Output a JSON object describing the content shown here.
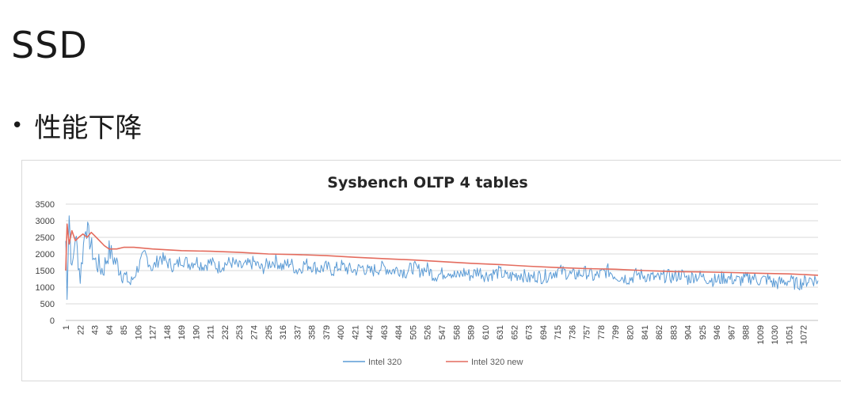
{
  "slide": {
    "title": "SSD",
    "bullet": "性能下降"
  },
  "colors": {
    "series_intel320": "#5b9bd5",
    "series_intel320_new": "#e46c5e",
    "grid": "#d9d9d9"
  },
  "chart_data": {
    "type": "line",
    "title": "Sysbench OLTP 4 tables",
    "xlabel": "",
    "ylabel": "",
    "ylim": [
      0,
      3500
    ],
    "y_ticks": [
      0,
      500,
      1000,
      1500,
      2000,
      2500,
      3000,
      3500
    ],
    "x_tick_labels": [
      "1",
      "22",
      "43",
      "64",
      "85",
      "106",
      "127",
      "148",
      "169",
      "190",
      "211",
      "232",
      "253",
      "274",
      "295",
      "316",
      "337",
      "358",
      "379",
      "400",
      "421",
      "442",
      "463",
      "484",
      "505",
      "526",
      "547",
      "568",
      "589",
      "610",
      "631",
      "652",
      "673",
      "694",
      "715",
      "736",
      "757",
      "778",
      "799",
      "820",
      "841",
      "862",
      "883",
      "904",
      "925",
      "946",
      "967",
      "988",
      "1009",
      "1030",
      "1051",
      "1072"
    ],
    "x_range": [
      1,
      1093
    ],
    "grid": "horizontal",
    "legend_position": "bottom",
    "series": [
      {
        "name": "Intel 320",
        "style": "noisy",
        "x": [
          1,
          3,
          6,
          10,
          15,
          22,
          30,
          43,
          55,
          64,
          75,
          85,
          95,
          106,
          116,
          127,
          138,
          148,
          160,
          169,
          180,
          190,
          200,
          211,
          222,
          232,
          242,
          253,
          264,
          274,
          285,
          295,
          306,
          316,
          326,
          337,
          348,
          358,
          369,
          379,
          390,
          400,
          410,
          421,
          432,
          442,
          452,
          463,
          474,
          484,
          495,
          505,
          515,
          526,
          536,
          547,
          558,
          568,
          579,
          589,
          600,
          610,
          620,
          631,
          642,
          652,
          662,
          673,
          684,
          694,
          705,
          715,
          726,
          736,
          746,
          757,
          768,
          778,
          788,
          799,
          810,
          820,
          830,
          841,
          852,
          862,
          872,
          883,
          894,
          904,
          914,
          925,
          936,
          946,
          956,
          967,
          978,
          988,
          998,
          1009,
          1020,
          1030,
          1040,
          1051,
          1062,
          1072,
          1082,
          1093
        ],
        "y": [
          2400,
          900,
          3200,
          1400,
          2600,
          1300,
          2900,
          1800,
          1500,
          2100,
          1700,
          1400,
          1100,
          1600,
          2000,
          1550,
          1900,
          1750,
          1600,
          1850,
          1700,
          1800,
          1650,
          1750,
          1600,
          1700,
          1750,
          1600,
          1650,
          1750,
          1550,
          1700,
          1800,
          1600,
          1750,
          1500,
          1700,
          1650,
          1550,
          1600,
          1500,
          1650,
          1550,
          1500,
          1600,
          1450,
          1550,
          1600,
          1500,
          1550,
          1450,
          1600,
          1500,
          1550,
          1350,
          1400,
          1500,
          1300,
          1450,
          1350,
          1500,
          1350,
          1400,
          1450,
          1300,
          1350,
          1400,
          1250,
          1350,
          1300,
          1400,
          1500,
          1450,
          1350,
          1400,
          1450,
          1300,
          1400,
          1500,
          1350,
          1300,
          1250,
          1400,
          1350,
          1300,
          1250,
          1350,
          1300,
          1400,
          1250,
          1350,
          1300,
          1250,
          1200,
          1300,
          1250,
          1200,
          1250,
          1300,
          1200,
          1250,
          1100,
          1150,
          1200,
          1100,
          1150,
          1250,
          1200
        ]
      },
      {
        "name": "Intel 320 new",
        "style": "smooth",
        "x": [
          1,
          3,
          6,
          10,
          15,
          20,
          26,
          32,
          38,
          43,
          50,
          57,
          64,
          75,
          85,
          100,
          127,
          169,
          211,
          253,
          295,
          337,
          379,
          421,
          463,
          505,
          547,
          589,
          631,
          673,
          715,
          757,
          799,
          841,
          883,
          925,
          967,
          1009,
          1051,
          1072,
          1093
        ],
        "y": [
          1500,
          2900,
          2300,
          2700,
          2400,
          2500,
          2600,
          2500,
          2650,
          2550,
          2400,
          2250,
          2150,
          2150,
          2200,
          2200,
          2150,
          2100,
          2080,
          2050,
          2000,
          1980,
          1950,
          1900,
          1860,
          1820,
          1770,
          1720,
          1680,
          1630,
          1590,
          1560,
          1540,
          1500,
          1470,
          1460,
          1440,
          1420,
          1400,
          1380,
          1360
        ]
      }
    ]
  }
}
